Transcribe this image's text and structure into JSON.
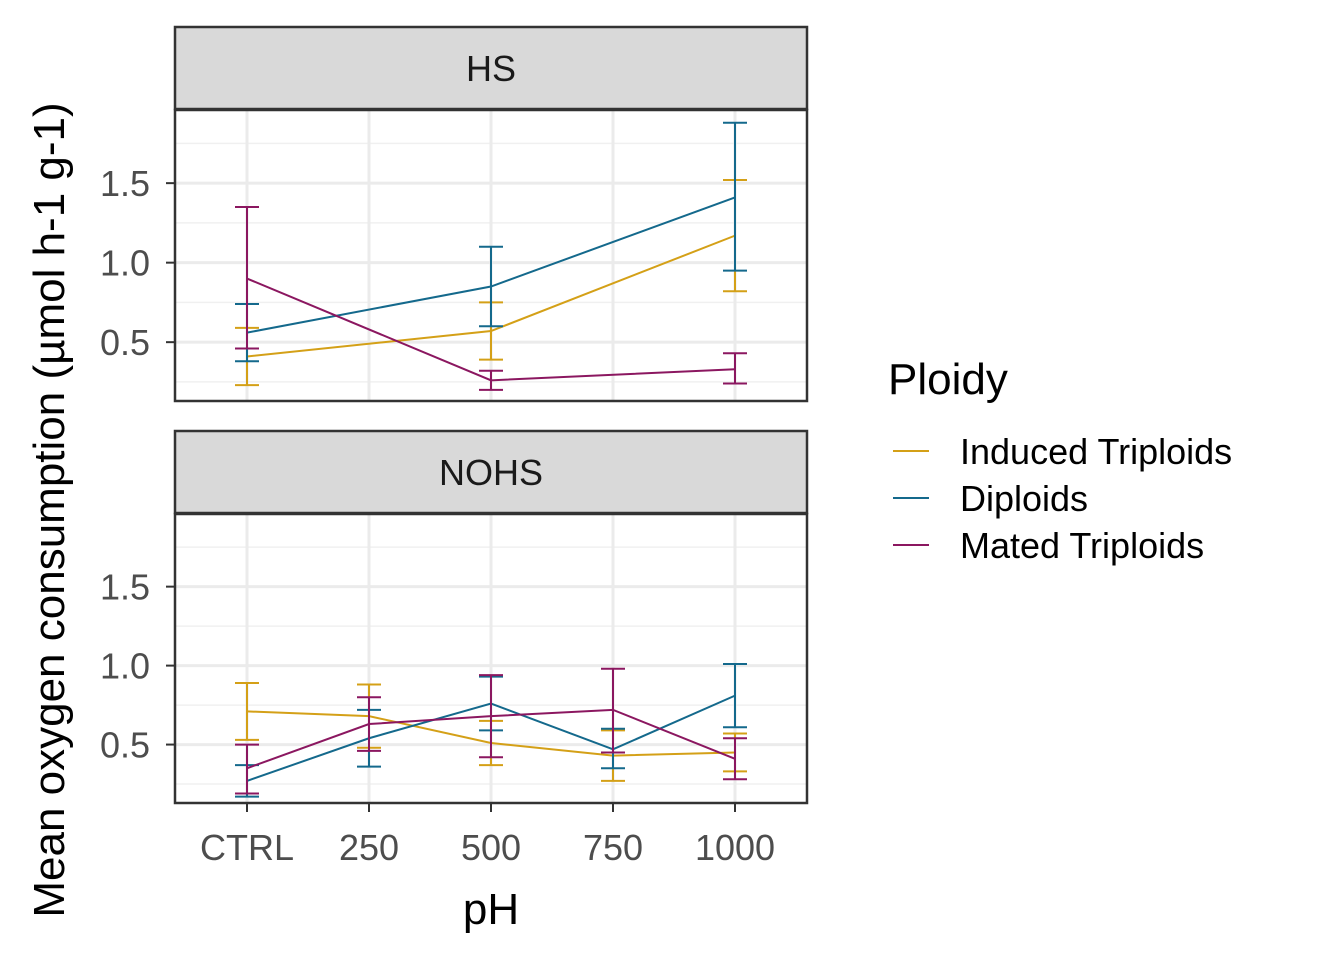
{
  "chart_data": {
    "type": "line",
    "xlabel": "pH",
    "ylabel": "Mean oxygen consumption (µmol h-1 g-1)",
    "categories": [
      "CTRL",
      "250",
      "500",
      "750",
      "1000"
    ],
    "y_ticks": [
      "0.5",
      "1.0",
      "1.5"
    ],
    "legend": {
      "title": "Ploidy",
      "position": "right"
    },
    "grid": true,
    "panels": [
      {
        "label": "HS",
        "ylim": [
          0.13,
          1.96
        ],
        "series": [
          {
            "name": "Induced Triploids",
            "color": "#D4A017",
            "points": [
              {
                "x": "CTRL",
                "y": 0.41,
                "lo": 0.23,
                "hi": 0.59
              },
              {
                "x": "500",
                "y": 0.57,
                "lo": 0.39,
                "hi": 0.75
              },
              {
                "x": "1000",
                "y": 1.17,
                "lo": 0.82,
                "hi": 1.52
              }
            ]
          },
          {
            "name": "Diploids",
            "color": "#14698C",
            "points": [
              {
                "x": "CTRL",
                "y": 0.56,
                "lo": 0.38,
                "hi": 0.74
              },
              {
                "x": "500",
                "y": 0.85,
                "lo": 0.6,
                "hi": 1.1
              },
              {
                "x": "1000",
                "y": 1.41,
                "lo": 0.95,
                "hi": 1.88
              }
            ]
          },
          {
            "name": "Mated Triploids",
            "color": "#8B1760",
            "points": [
              {
                "x": "CTRL",
                "y": 0.9,
                "lo": 0.46,
                "hi": 1.35
              },
              {
                "x": "500",
                "y": 0.26,
                "lo": 0.2,
                "hi": 0.32
              },
              {
                "x": "1000",
                "y": 0.33,
                "lo": 0.24,
                "hi": 0.43
              }
            ]
          }
        ]
      },
      {
        "label": "NOHS",
        "ylim": [
          0.13,
          1.96
        ],
        "series": [
          {
            "name": "Induced Triploids",
            "color": "#D4A017",
            "points": [
              {
                "x": "CTRL",
                "y": 0.71,
                "lo": 0.53,
                "hi": 0.89
              },
              {
                "x": "250",
                "y": 0.68,
                "lo": 0.48,
                "hi": 0.88
              },
              {
                "x": "500",
                "y": 0.51,
                "lo": 0.37,
                "hi": 0.65
              },
              {
                "x": "750",
                "y": 0.43,
                "lo": 0.27,
                "hi": 0.59
              },
              {
                "x": "1000",
                "y": 0.45,
                "lo": 0.33,
                "hi": 0.57
              }
            ]
          },
          {
            "name": "Diploids",
            "color": "#14698C",
            "points": [
              {
                "x": "CTRL",
                "y": 0.27,
                "lo": 0.17,
                "hi": 0.37
              },
              {
                "x": "250",
                "y": 0.54,
                "lo": 0.36,
                "hi": 0.72
              },
              {
                "x": "500",
                "y": 0.76,
                "lo": 0.59,
                "hi": 0.93
              },
              {
                "x": "750",
                "y": 0.47,
                "lo": 0.35,
                "hi": 0.6
              },
              {
                "x": "1000",
                "y": 0.81,
                "lo": 0.61,
                "hi": 1.01
              }
            ]
          },
          {
            "name": "Mated Triploids",
            "color": "#8B1760",
            "points": [
              {
                "x": "CTRL",
                "y": 0.35,
                "lo": 0.19,
                "hi": 0.5
              },
              {
                "x": "250",
                "y": 0.63,
                "lo": 0.46,
                "hi": 0.8
              },
              {
                "x": "500",
                "y": 0.68,
                "lo": 0.42,
                "hi": 0.94
              },
              {
                "x": "750",
                "y": 0.72,
                "lo": 0.45,
                "hi": 0.98
              },
              {
                "x": "1000",
                "y": 0.41,
                "lo": 0.28,
                "hi": 0.54
              }
            ]
          }
        ]
      }
    ]
  }
}
